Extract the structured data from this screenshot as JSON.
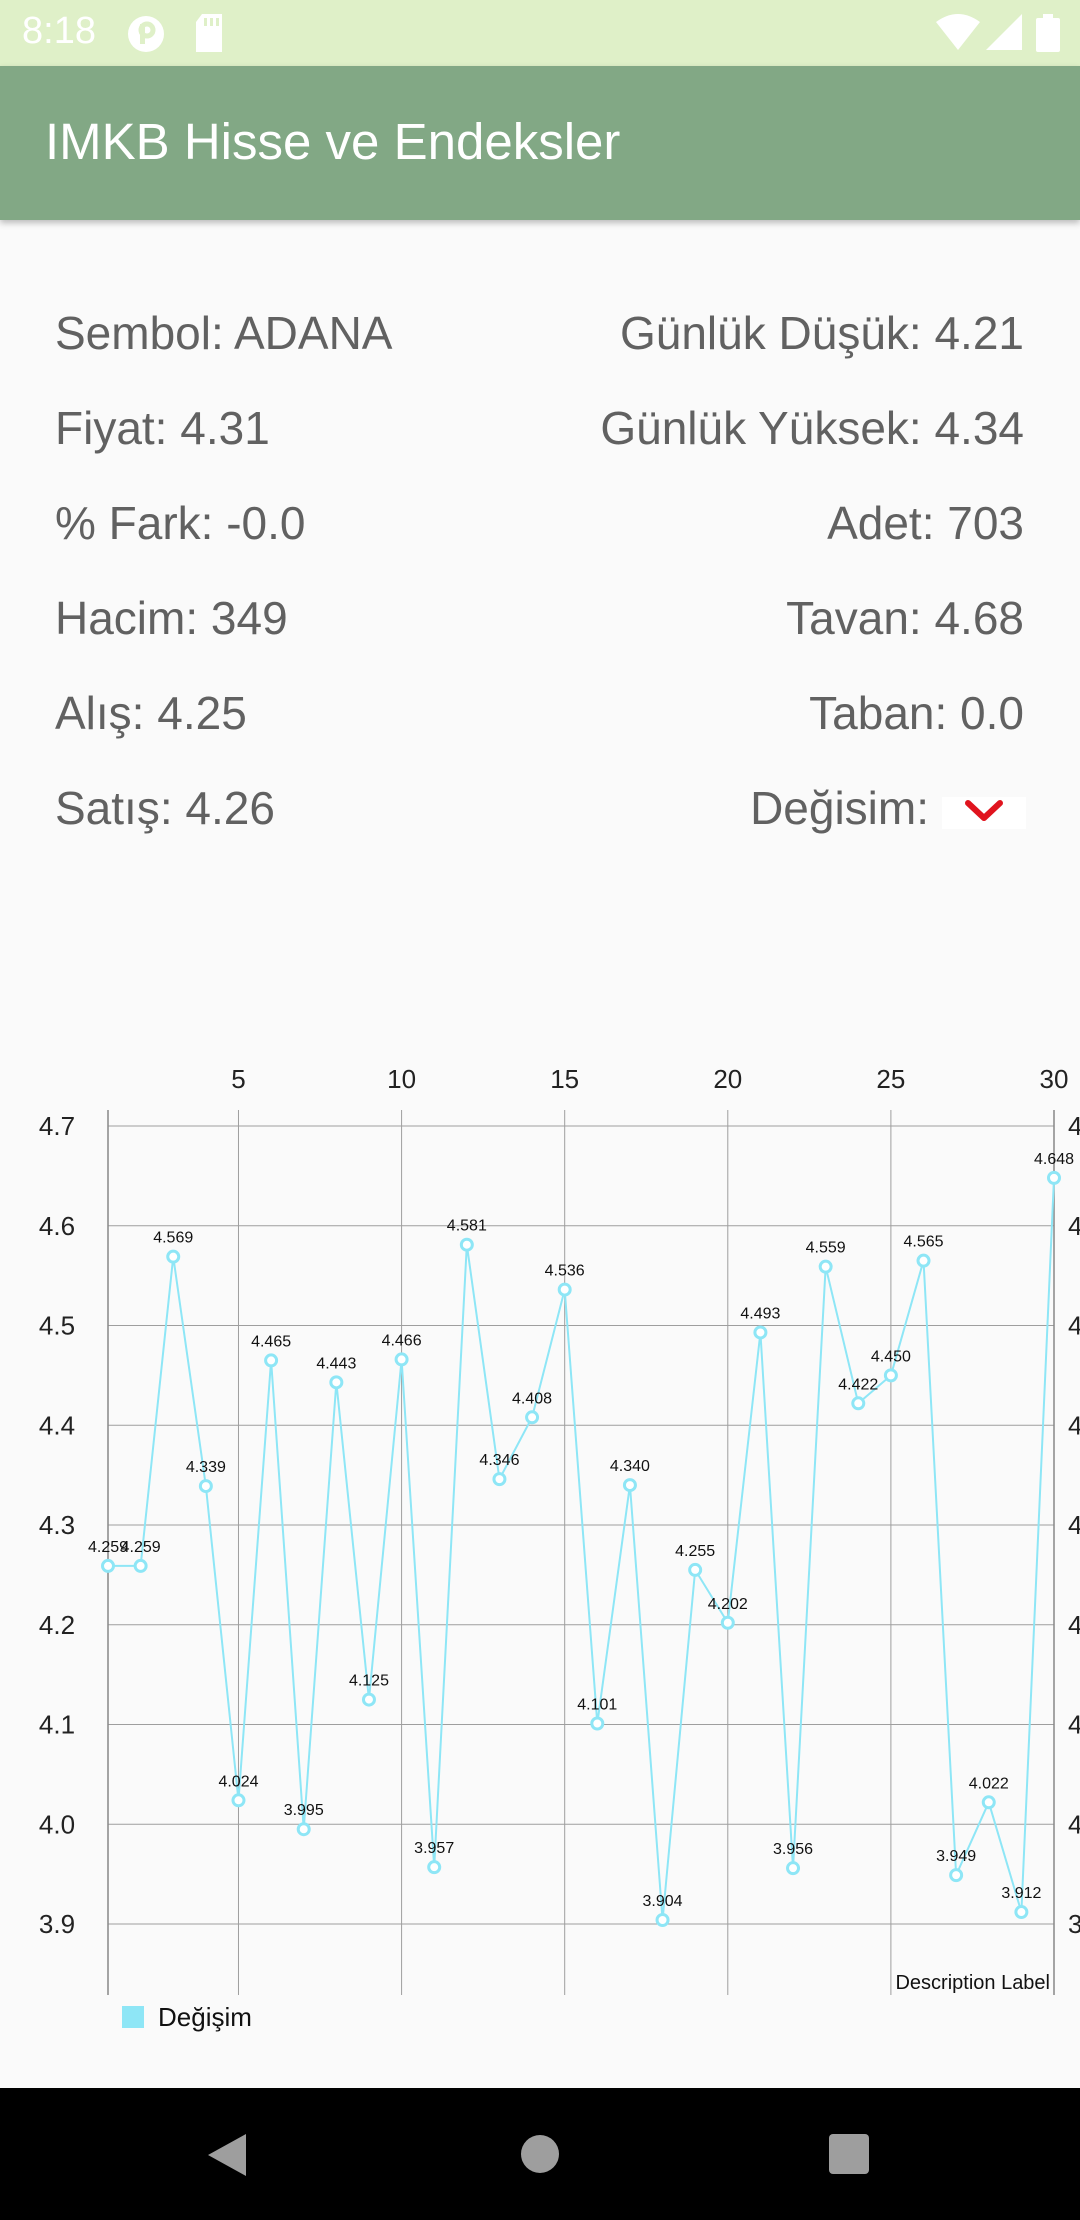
{
  "status_bar": {
    "time": "8:18",
    "icons": [
      "notification-p-icon",
      "sd-card-icon",
      "wifi-icon",
      "signal-icon",
      "battery-icon"
    ]
  },
  "app_bar": {
    "title": "IMKB Hisse ve Endeksler"
  },
  "details": {
    "symbol": "Sembol: ADANA",
    "price": "Fiyat: 4.31",
    "percent_diff": "% Fark: -0.0",
    "volume": "Hacim: 349",
    "bid": "Alış: 4.25",
    "ask": "Satış: 4.26",
    "daily_low": "Günlük Düşük: 4.21",
    "daily_high": "Günlük Yüksek: 4.34",
    "count": "Adet: 703",
    "ceiling": "Tavan: 4.68",
    "floor": "Taban: 0.0",
    "change_label": "Değisim:",
    "change_icon": "chevron-down-icon",
    "change_color": "#e0141e"
  },
  "chart_data": {
    "type": "line",
    "description": "Description Label",
    "x": [
      1,
      2,
      3,
      4,
      5,
      6,
      7,
      8,
      9,
      10,
      11,
      12,
      13,
      14,
      15,
      16,
      17,
      18,
      19,
      20,
      21,
      22,
      23,
      24,
      25,
      26,
      27,
      28,
      29,
      30
    ],
    "series": [
      {
        "name": "Değişim",
        "color": "#8ee6f6",
        "values": [
          4.259,
          4.259,
          4.569,
          4.339,
          4.024,
          4.465,
          3.995,
          4.443,
          4.125,
          4.466,
          3.957,
          4.581,
          4.346,
          4.408,
          4.536,
          4.101,
          4.34,
          3.904,
          4.255,
          4.202,
          4.493,
          3.956,
          4.559,
          4.422,
          4.45,
          4.565,
          3.949,
          4.022,
          3.912,
          4.648
        ],
        "labels": [
          "4.259",
          "4.259",
          "4.569",
          "4.339",
          "4.024",
          "4.465",
          "3.995",
          "4.443",
          "4.125",
          "4.466",
          "3.957",
          "4.581",
          "4.346",
          "4.408",
          "4.536",
          "4.101",
          "4.340",
          "3.904",
          "4.255",
          "4.202",
          "4.493",
          "3.956",
          "4.559",
          "4.422",
          "4.450",
          "4.565",
          "3.949",
          "4.022",
          "3.912",
          "4.648"
        ]
      }
    ],
    "x_ticks": [
      5,
      10,
      15,
      20,
      25,
      30
    ],
    "x_tick_labels": [
      "5",
      "10",
      "15",
      "20",
      "25",
      "30"
    ],
    "y_ticks": [
      3.9,
      4.0,
      4.1,
      4.2,
      4.3,
      4.4,
      4.5,
      4.6,
      4.7
    ],
    "y_tick_labels": [
      "3.9",
      "4.0",
      "4.1",
      "4.2",
      "4.3",
      "4.4",
      "4.5",
      "4.6",
      "4.7"
    ],
    "right_tick_labels": [
      "3",
      "4",
      "4",
      "4",
      "4",
      "4",
      "4",
      "4",
      "4"
    ],
    "xlim": [
      1,
      30
    ],
    "ylim": [
      3.88,
      4.72
    ],
    "grid": true,
    "x_axis_position": "top",
    "legend_position": "bottom-left"
  },
  "nav_bar": {
    "back": "back-icon",
    "home": "home-icon",
    "recents": "recents-icon"
  }
}
